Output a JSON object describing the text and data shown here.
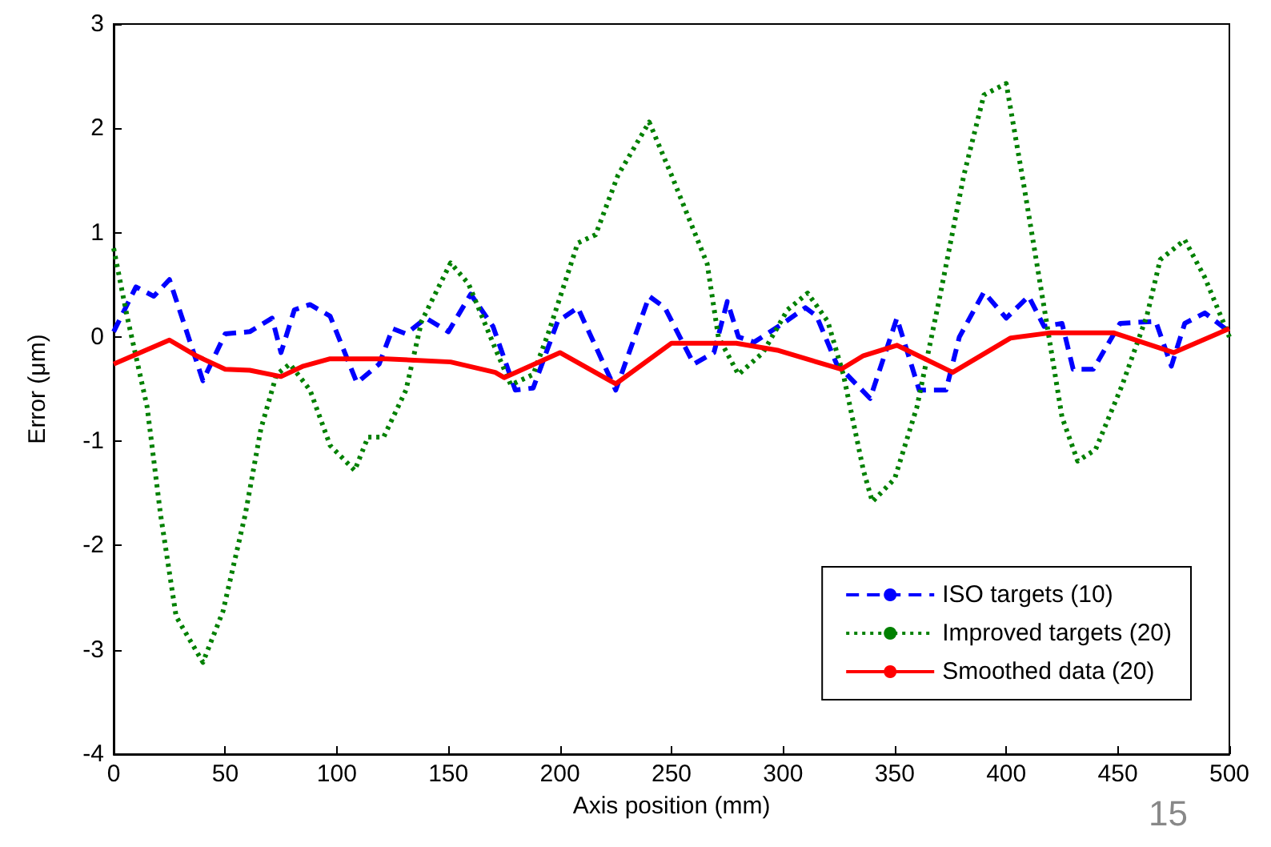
{
  "chart_data": {
    "type": "line",
    "xlabel": "Axis position (mm)",
    "ylabel": "Error (μm)",
    "xlim": [
      0,
      500
    ],
    "xticks": [
      0,
      50,
      100,
      150,
      200,
      250,
      300,
      350,
      400,
      450,
      500
    ],
    "ylim": [
      -4,
      3
    ],
    "yticks": [
      -4,
      -3,
      -2,
      -1,
      0,
      1,
      2,
      3
    ],
    "grid": false,
    "legend": "bottom right",
    "annotations": [
      "15"
    ],
    "series": [
      {
        "name": "ISO targets (10)",
        "color": "#0000ff",
        "line_style": "dashed",
        "x": [
          0,
          10,
          18,
          25,
          40,
          50,
          61,
          71,
          75,
          81,
          88,
          97,
          109,
          119,
          125,
          131,
          140,
          150,
          160,
          170,
          180,
          188,
          199,
          208,
          225,
          240,
          247,
          260,
          269,
          275,
          280,
          287,
          300,
          310,
          315,
          324,
          339,
          351,
          361,
          373,
          379,
          390,
          400,
          410,
          417,
          425,
          430,
          439,
          451,
          467,
          474,
          480,
          489,
          500
        ],
        "values": [
          0.05,
          0.48,
          0.39,
          0.55,
          -0.42,
          0.03,
          0.05,
          0.18,
          -0.15,
          0.26,
          0.31,
          0.2,
          -0.44,
          -0.26,
          0.08,
          0.03,
          0.18,
          0.05,
          0.41,
          0.1,
          -0.51,
          -0.49,
          0.15,
          0.28,
          -0.51,
          0.39,
          0.28,
          -0.26,
          -0.15,
          0.34,
          0,
          -0.05,
          0.13,
          0.28,
          0.2,
          -0.26,
          -0.59,
          0.18,
          -0.51,
          -0.51,
          0,
          0.43,
          0.18,
          0.39,
          0.1,
          0.13,
          -0.31,
          -0.31,
          0.13,
          0.15,
          -0.28,
          0.13,
          0.23,
          0.05
        ]
      },
      {
        "name": "Improved targets (20)",
        "color": "#008000",
        "line_style": "dotted",
        "x": [
          0,
          6,
          15,
          21,
          28,
          40,
          49,
          59,
          66,
          73,
          79,
          88,
          97,
          108,
          114,
          121,
          131,
          138,
          151,
          159,
          171,
          178,
          188,
          195,
          208,
          216,
          226,
          240,
          250,
          266,
          271,
          280,
          291,
          302,
          311,
          320,
          327,
          336,
          340,
          350,
          360,
          370,
          381,
          390,
          400,
          408,
          418,
          425,
          432,
          440,
          452,
          463,
          469,
          480,
          489,
          500
        ],
        "values": [
          0.85,
          0.2,
          -0.67,
          -1.7,
          -2.68,
          -3.12,
          -2.63,
          -1.7,
          -0.88,
          -0.36,
          -0.26,
          -0.51,
          -1.04,
          -1.28,
          -0.96,
          -0.96,
          -0.51,
          0.15,
          0.71,
          0.51,
          -0.11,
          -0.46,
          -0.36,
          0.05,
          0.9,
          0.98,
          1.55,
          2.06,
          1.55,
          0.7,
          0,
          -0.36,
          -0.15,
          0.26,
          0.42,
          0.15,
          -0.36,
          -1.28,
          -1.58,
          -1.36,
          -0.67,
          0.36,
          1.55,
          2.32,
          2.43,
          1.44,
          0.15,
          -0.77,
          -1.19,
          -1.08,
          -0.46,
          0.2,
          0.74,
          0.93,
          0.57,
          0
        ]
      },
      {
        "name": "Smoothed data (20)",
        "color": "#ff0000",
        "line_style": "solid",
        "x": [
          0,
          25,
          37,
          50,
          61,
          75,
          85,
          97,
          122,
          151,
          171,
          175,
          200,
          225,
          250,
          279,
          298,
          326,
          336,
          351,
          376,
          402,
          420,
          448,
          475,
          500
        ],
        "values": [
          -0.26,
          -0.03,
          -0.18,
          -0.31,
          -0.32,
          -0.38,
          -0.28,
          -0.21,
          -0.21,
          -0.24,
          -0.34,
          -0.39,
          -0.15,
          -0.45,
          -0.06,
          -0.06,
          -0.13,
          -0.31,
          -0.18,
          -0.08,
          -0.34,
          -0.01,
          0.04,
          0.04,
          -0.15,
          0.08
        ]
      }
    ]
  }
}
